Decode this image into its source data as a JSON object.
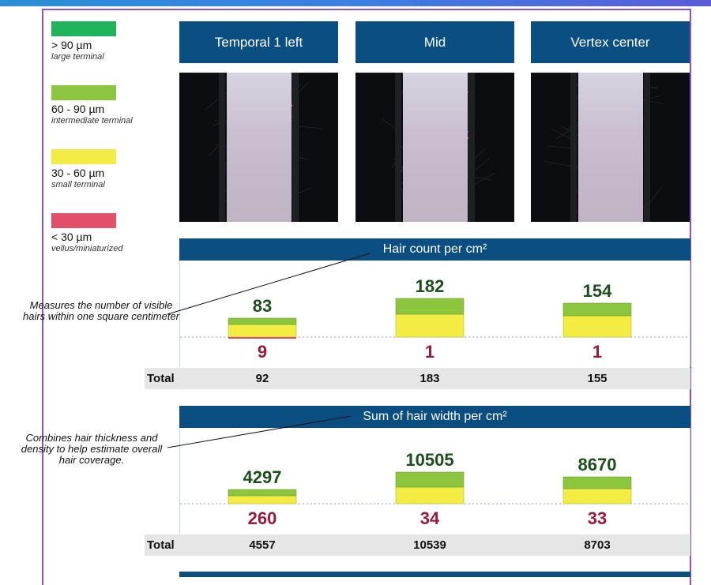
{
  "colors": {
    "green": "#21b35a",
    "light_green": "#8cc63f",
    "yellow": "#f2ec43",
    "red": "#e34f6a",
    "header_blue": "#0b4f82",
    "count_text": "#1b4f1b",
    "minor_text": "#9b1a3c"
  },
  "legend": [
    {
      "range": "> 90 µm",
      "desc": "large terminal",
      "color": "#21b35a"
    },
    {
      "range": "60 - 90 µm",
      "desc": "intermediate terminal",
      "color": "#8cc63f"
    },
    {
      "range": "30 - 60 µm",
      "desc": "small terminal",
      "color": "#f2ec43"
    },
    {
      "range": "< 30 µm",
      "desc": "vellus/miniaturized",
      "color": "#e34f6a"
    }
  ],
  "columns": [
    "Temporal 1 left",
    "Mid",
    "Vertex center"
  ],
  "annotations": {
    "count": "Measures the number of visible hairs within one square centimeter",
    "width": "Combines hair thickness and density to help estimate overall hair coverage."
  },
  "total_label": "Total",
  "chart_data": [
    {
      "type": "bar",
      "title": "Hair count per cm²",
      "categories": [
        "Temporal 1 left",
        "Mid",
        "Vertex center"
      ],
      "series": [
        {
          "name": "60 - 90 µm",
          "values": [
            8,
            20,
            16
          ]
        },
        {
          "name": "30 - 60 µm",
          "values": [
            16,
            29,
            27
          ]
        },
        {
          "name": "< 30 µm",
          "values": [
            2,
            0,
            0
          ]
        }
      ],
      "terminal_labels": [
        "83",
        "182",
        "154"
      ],
      "vellus_labels": [
        "9",
        "1",
        "1"
      ],
      "totals": [
        "92",
        "183",
        "155"
      ]
    },
    {
      "type": "bar",
      "title": "Sum of hair width per cm²",
      "categories": [
        "Temporal 1 left",
        "Mid",
        "Vertex center"
      ],
      "series": [
        {
          "name": "60 - 90 µm",
          "values": [
            8,
            19,
            15
          ]
        },
        {
          "name": "30 - 60 µm",
          "values": [
            10,
            21,
            19
          ]
        },
        {
          "name": "< 30 µm",
          "values": [
            0,
            0,
            0
          ]
        }
      ],
      "terminal_labels": [
        "4297",
        "10505",
        "8670"
      ],
      "vellus_labels": [
        "260",
        "34",
        "33"
      ],
      "totals": [
        "4557",
        "10539",
        "8703"
      ]
    }
  ]
}
